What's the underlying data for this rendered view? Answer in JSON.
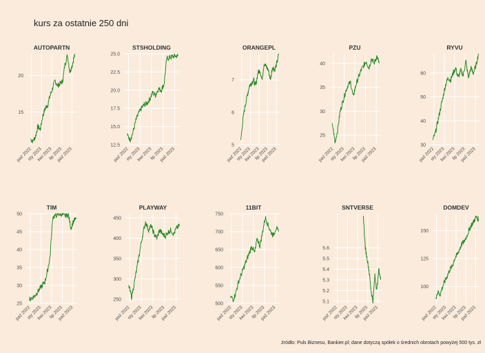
{
  "page": {
    "title": "kurs za ostatnie 250 dni",
    "caption": "źródło: Puls Biznesu, Bankier.pl; dane dotyczą spółek o średnich obrotach powyżej 500 tys. zł"
  },
  "colors": {
    "background": "#faebdc",
    "grid": "#ffffff",
    "line": "#228b22",
    "text": "#4d4d4d"
  },
  "chart_data": [
    {
      "type": "line",
      "title": "AUTOPARTN",
      "xticks": [
        "paź 2022",
        "sty 2023",
        "kwi 2023",
        "lip 2023",
        "paź 2023"
      ],
      "ylim": [
        10.5,
        23.0
      ],
      "yticks": [
        15,
        20
      ],
      "y_points": [
        11.3,
        11.0,
        11.6,
        13.0,
        12.6,
        14.5,
        15.5,
        16.0,
        17.3,
        18.3,
        19.3,
        18.6,
        18.9,
        19.2,
        21.5,
        22.8,
        20.5,
        21.5,
        23.0
      ]
    },
    {
      "type": "line",
      "title": "STSHOLDING",
      "xticks": [
        "paź 2022",
        "sty 2023",
        "kwi 2023",
        "lip 2023",
        "paź 2023"
      ],
      "ylim": [
        12.5,
        25.0
      ],
      "yticks": [
        12.5,
        15.0,
        17.5,
        20.0,
        22.5,
        25.0
      ],
      "y_points": [
        13.8,
        13.2,
        14.2,
        15.8,
        16.8,
        17.5,
        18.0,
        18.2,
        18.8,
        19.7,
        19.3,
        20.2,
        20.0,
        20.8,
        24.3,
        24.5,
        24.6,
        24.7,
        24.7
      ]
    },
    {
      "type": "line",
      "title": "ORANGEPL",
      "xticks": [
        "paź 2022",
        "sty 2023",
        "kwi 2023",
        "lip 2023",
        "paź 2023"
      ],
      "ylim": [
        5.0,
        7.8
      ],
      "yticks": [
        5,
        6,
        7
      ],
      "y_points": [
        5.15,
        5.8,
        6.2,
        6.5,
        6.8,
        6.9,
        7.0,
        6.8,
        7.2,
        7.3,
        7.0,
        7.5,
        7.4,
        7.3,
        7.0,
        7.4,
        7.3,
        7.5,
        7.8
      ]
    },
    {
      "type": "line",
      "title": "PZU",
      "xticks": [
        "paź 2022",
        "sty 2023",
        "kwi 2023",
        "lip 2023",
        "paź 2023"
      ],
      "ylim": [
        23.0,
        42.0
      ],
      "yticks": [
        25,
        30,
        35,
        40
      ],
      "y_points": [
        27.5,
        23.5,
        26.0,
        30.0,
        32.0,
        34.0,
        35.5,
        36.0,
        33.0,
        35.5,
        37.0,
        38.5,
        39.5,
        40.5,
        39.0,
        41.0,
        40.0,
        41.5,
        40.0
      ]
    },
    {
      "type": "line",
      "title": "RYVU",
      "xticks": [
        "paź 2022",
        "sty 2023",
        "kwi 2023",
        "lip 2023",
        "paź 2023"
      ],
      "ylim": [
        30.0,
        68.0
      ],
      "yticks": [
        30,
        40,
        50,
        60
      ],
      "y_points": [
        32.0,
        35.0,
        40.0,
        45.0,
        50.0,
        55.0,
        58.0,
        57.0,
        60.0,
        62.0,
        58.0,
        61.0,
        59.0,
        65.0,
        58.0,
        62.0,
        60.0,
        63.0,
        68.0
      ]
    },
    {
      "type": "line",
      "title": "TIM",
      "xticks": [
        "paź 2022",
        "sty 2023",
        "kwi 2023",
        "lip 2023",
        "paź 2023"
      ],
      "ylim": [
        25.0,
        50.0
      ],
      "yticks": [
        25,
        30,
        35,
        40,
        45,
        50
      ],
      "y_points": [
        26.0,
        26.5,
        27.0,
        28.0,
        29.0,
        30.0,
        31.0,
        34.0,
        38.0,
        49.0,
        49.5,
        49.8,
        50.0,
        49.7,
        49.5,
        49.8,
        46.0,
        48.0,
        48.5
      ]
    },
    {
      "type": "line",
      "title": "PLAYWAY",
      "xticks": [
        "paź 2022",
        "sty 2023",
        "kwi 2023",
        "lip 2023",
        "paź 2023"
      ],
      "ylim": [
        240,
        460
      ],
      "yticks": [
        250,
        300,
        350,
        400,
        450
      ],
      "y_points": [
        285,
        255,
        290,
        330,
        370,
        410,
        440,
        420,
        430,
        410,
        400,
        420,
        410,
        405,
        415,
        420,
        410,
        425,
        430
      ]
    },
    {
      "type": "line",
      "title": "11BIT",
      "xticks": [
        "paź 2022",
        "sty 2023",
        "kwi 2023",
        "lip 2023",
        "paź 2023"
      ],
      "ylim": [
        500,
        750
      ],
      "yticks": [
        500,
        550,
        600,
        650,
        700,
        750
      ],
      "y_points": [
        520,
        510,
        530,
        560,
        580,
        600,
        620,
        640,
        660,
        640,
        680,
        660,
        700,
        740,
        720,
        700,
        690,
        710,
        700
      ]
    },
    {
      "type": "line",
      "title": "SNTVERSE",
      "xticks": [
        "paź 2022",
        "sty 2023",
        "kwi 2023",
        "lip 2023",
        "paź 2023"
      ],
      "ylim": [
        5.08,
        5.92
      ],
      "yticks": [
        5.1,
        5.2,
        5.3,
        5.4,
        5.5,
        5.6
      ],
      "y_points": [
        5.9,
        5.6,
        5.5,
        5.38,
        5.2,
        5.1,
        5.35,
        5.2,
        5.4,
        5.3
      ]
    },
    {
      "type": "line",
      "title": "DOMDEV",
      "xticks": [
        "paź 2022",
        "sty 2023",
        "kwi 2023",
        "lip 2023",
        "paź 2023"
      ],
      "ylim": [
        85,
        165
      ],
      "yticks": [
        100,
        125,
        150
      ],
      "y_points": [
        90,
        95,
        93,
        100,
        105,
        110,
        115,
        118,
        125,
        128,
        133,
        138,
        140,
        145,
        150,
        155,
        158,
        162,
        160
      ]
    }
  ]
}
